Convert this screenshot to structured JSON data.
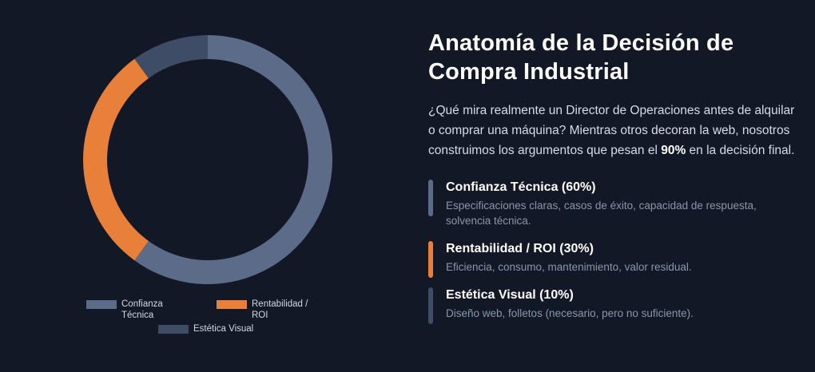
{
  "chart_data": {
    "type": "pie",
    "donut": true,
    "categories": [
      "Confianza Técnica",
      "Rentabilidad / ROI",
      "Estética Visual"
    ],
    "values": [
      60,
      30,
      10
    ],
    "colors": [
      "#5b6b88",
      "#e8803a",
      "#3f4c66"
    ],
    "legend": {
      "position": "bottom",
      "items": [
        {
          "label_line1": "Confianza",
          "label_line2": "Técnica",
          "color": "#5b6b88"
        },
        {
          "label_line1": "Rentabilidad /",
          "label_line2": "ROI",
          "color": "#e8803a"
        },
        {
          "label_line1": "Estética Visual",
          "label_line2": "",
          "color": "#3f4c66"
        }
      ]
    }
  },
  "content": {
    "title_line1": "Anatomía de la Decisión de",
    "title_line2": "Compra Industrial",
    "intro_text": "¿Qué mira realmente un Director de Operaciones antes de alquilar o comprar una máquina? Mientras otros decoran la web, nosotros construimos los argumentos que pesan el ",
    "intro_highlight": "90%",
    "intro_end": " en la decisión final.",
    "factors": [
      {
        "title": "Confianza Técnica (60%)",
        "description": "Especificaciones claras, casos de éxito, capacidad de respuesta, solvencia técnica.",
        "color": "#5b6b88"
      },
      {
        "title": "Rentabilidad / ROI (30%)",
        "description": "Eficiencia, consumo, mantenimiento, valor residual.",
        "color": "#e8803a"
      },
      {
        "title": "Estética Visual (10%)",
        "description": "Diseño web, folletos (necesario, pero no suficiente).",
        "color": "#3f4c66"
      }
    ]
  }
}
